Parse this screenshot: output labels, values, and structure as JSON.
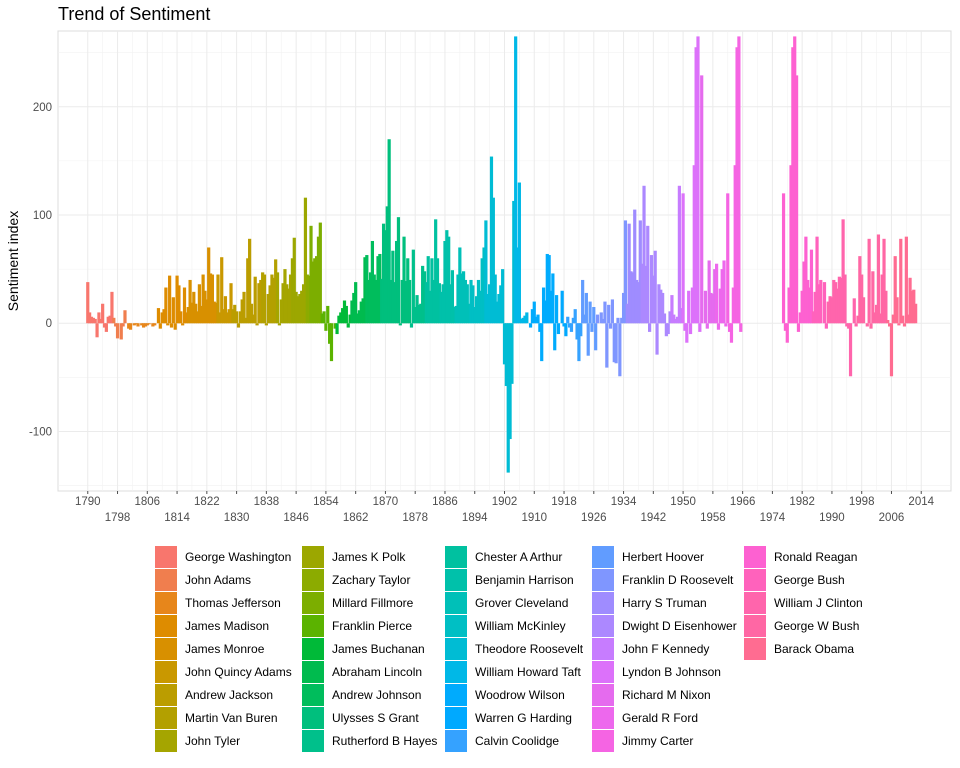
{
  "chart_data": {
    "type": "bar",
    "title": "Trend of Sentiment",
    "xlabel": "",
    "ylabel": "Sentiment index",
    "xlim": [
      1782,
      2022
    ],
    "ylim": [
      -155,
      270
    ],
    "y_ticks": [
      -100,
      0,
      100,
      200
    ],
    "x_ticks": [
      1790,
      1798,
      1806,
      1814,
      1822,
      1830,
      1838,
      1846,
      1854,
      1862,
      1870,
      1878,
      1886,
      1894,
      1902,
      1910,
      1918,
      1926,
      1934,
      1942,
      1950,
      1958,
      1966,
      1974,
      1982,
      1990,
      1998,
      2006,
      2014
    ],
    "grid": true,
    "legend_position": "bottom",
    "series": [
      {
        "name": "George Washington",
        "color": "#F8766D",
        "x": [
          1790,
          1790.5,
          1791,
          1791.5,
          1792,
          1792.5,
          1793,
          1793.5,
          1794,
          1794.5,
          1795,
          1795.5,
          1796,
          1796.5
        ],
        "values": [
          38,
          10,
          6,
          5,
          4,
          -13,
          10,
          4,
          18,
          -4,
          -8,
          6,
          7,
          29
        ]
      },
      {
        "name": "John Adams",
        "color": "#F07E4E",
        "x": [
          1797,
          1797.5,
          1798,
          1798.5,
          1799,
          1799.5,
          1800,
          1800.5
        ],
        "values": [
          5,
          -3,
          -14,
          0,
          -15,
          -3,
          12,
          0
        ]
      },
      {
        "name": "Thomas Jefferson",
        "color": "#E7861B",
        "x": [
          1801,
          1801.5,
          1802,
          1802.5,
          1803,
          1803.5,
          1804,
          1804.5,
          1805,
          1805.5,
          1806,
          1806.5,
          1807,
          1807.5,
          1808,
          1808.5
        ],
        "values": [
          -5,
          -6,
          0,
          -2,
          -1,
          -3,
          0,
          -2,
          -4,
          -3,
          -2,
          -1,
          0,
          -3,
          -2,
          0
        ]
      },
      {
        "name": "James Madison",
        "color": "#DE8C00",
        "x": [
          1809,
          1809.5,
          1810,
          1810.5,
          1811,
          1811.5,
          1812,
          1812.5,
          1813,
          1813.5,
          1814,
          1814.5,
          1815,
          1815.5,
          1816,
          1816.5
        ],
        "values": [
          14,
          -5,
          10,
          13,
          33,
          -2,
          44,
          -4,
          24,
          -6,
          44,
          35,
          11,
          -2,
          33,
          10
        ]
      },
      {
        "name": "James Monroe",
        "color": "#D89000",
        "x": [
          1817,
          1817.5,
          1818,
          1818.5,
          1819,
          1819.5,
          1820,
          1820.5,
          1821,
          1821.5,
          1822,
          1822.5,
          1823,
          1823.5,
          1824,
          1824.5
        ],
        "values": [
          15,
          40,
          19,
          29,
          18,
          11,
          36,
          16,
          45,
          30,
          22,
          70,
          46,
          45,
          20,
          19
        ]
      },
      {
        "name": "John Quincy Adams",
        "color": "#C99800",
        "x": [
          1825,
          1825.5,
          1826,
          1826.5,
          1827,
          1827.5,
          1828,
          1828.5
        ],
        "values": [
          45,
          10,
          61,
          13,
          25,
          10,
          13,
          37
        ]
      },
      {
        "name": "Andrew Jackson",
        "color": "#BB9D00",
        "x": [
          1829,
          1829.5,
          1830,
          1830.5,
          1831,
          1831.5,
          1832,
          1832.5,
          1833,
          1833.5,
          1834,
          1834.5,
          1835,
          1835.5,
          1836,
          1836.5
        ],
        "values": [
          13,
          17,
          11,
          -4,
          11,
          22,
          29,
          5,
          60,
          78,
          18,
          8,
          43,
          -2,
          37,
          40
        ]
      },
      {
        "name": "Martin Van Buren",
        "color": "#B3A000",
        "x": [
          1837,
          1837.5,
          1838,
          1838.5,
          1839,
          1839.5,
          1840,
          1840.5
        ],
        "values": [
          47,
          45,
          -2,
          27,
          35,
          45,
          42,
          59
        ]
      },
      {
        "name": "John Tyler",
        "color": "#A5A500",
        "x": [
          1841,
          1841.5,
          1842,
          1842.5,
          1843,
          1843.5,
          1844,
          1844.5
        ],
        "values": [
          47,
          -2,
          22,
          37,
          50,
          36,
          32,
          45
        ]
      },
      {
        "name": "James K Polk",
        "color": "#9CA700",
        "x": [
          1845,
          1845.5,
          1846,
          1846.5,
          1847,
          1847.5,
          1848,
          1848.5
        ],
        "values": [
          60,
          79,
          29,
          25,
          27,
          30,
          36,
          116
        ]
      },
      {
        "name": "Zachary Taylor",
        "color": "#8CAB00",
        "x": [
          1849,
          1849.5
        ],
        "values": [
          45,
          44
        ]
      },
      {
        "name": "Millard Fillmore",
        "color": "#7CAE00",
        "x": [
          1850,
          1850.5,
          1851,
          1851.5,
          1852,
          1852.5
        ],
        "values": [
          90,
          57,
          60,
          62,
          80,
          93
        ]
      },
      {
        "name": "Franklin Pierce",
        "color": "#5BB300",
        "x": [
          1853,
          1853.5,
          1854,
          1854.5,
          1855,
          1855.5,
          1856,
          1856.5
        ],
        "values": [
          9,
          11,
          -7,
          16,
          -19,
          -35,
          0,
          -5
        ]
      },
      {
        "name": "James Buchanan",
        "color": "#00BA38",
        "x": [
          1857,
          1857.5,
          1858,
          1858.5,
          1859,
          1859.5,
          1860,
          1860.5
        ],
        "values": [
          -10,
          7,
          10,
          14,
          21,
          16,
          -4,
          8
        ]
      },
      {
        "name": "Abraham Lincoln",
        "color": "#00BB4E",
        "x": [
          1861,
          1861.5,
          1862,
          1862.5,
          1863,
          1863.5,
          1864,
          1864.5
        ],
        "values": [
          21,
          28,
          38,
          9,
          12,
          20,
          23,
          61
        ]
      },
      {
        "name": "Andrew Johnson",
        "color": "#00BD5C",
        "x": [
          1865,
          1865.5,
          1866,
          1866.5,
          1867,
          1867.5,
          1868,
          1868.5
        ],
        "values": [
          63,
          40,
          47,
          76,
          45,
          40,
          62,
          64
        ]
      },
      {
        "name": "Ulysses S Grant",
        "color": "#00BF7D",
        "x": [
          1869,
          1869.5,
          1870,
          1870.5,
          1871,
          1871.5,
          1872,
          1872.5,
          1873,
          1873.5,
          1874,
          1874.5,
          1875,
          1875.5,
          1876,
          1876.5
        ],
        "values": [
          41,
          92,
          86,
          108,
          170,
          40,
          67,
          38,
          76,
          98,
          -2,
          40,
          80,
          39,
          60,
          40
        ]
      },
      {
        "name": "Rutherford B Hayes",
        "color": "#00C08B",
        "x": [
          1877,
          1877.5,
          1878,
          1878.5,
          1879,
          1879.5,
          1880,
          1880.5
        ],
        "values": [
          -4,
          68,
          15,
          26,
          17,
          18,
          53,
          48
        ]
      },
      {
        "name": "Chester A Arthur",
        "color": "#00C1A0",
        "x": [
          1881,
          1881.5,
          1882,
          1882.5,
          1883,
          1883.5,
          1884,
          1884.5
        ],
        "values": [
          38,
          62,
          30,
          60,
          40,
          96,
          60,
          37
        ]
      },
      {
        "name": "Benjamin Harrison",
        "color": "#00C1AA",
        "x": [
          1885,
          1885.5,
          1886,
          1886.5,
          1887,
          1887.5,
          1888,
          1888.5
        ],
        "values": [
          29,
          36,
          76,
          86,
          80,
          36,
          49,
          15
        ]
      },
      {
        "name": "Grover Cleveland",
        "color": "#00C0B8",
        "x": [
          1889,
          1889.5,
          1890,
          1890.5,
          1891,
          1891.5,
          1892,
          1892.5
        ],
        "values": [
          16,
          45,
          70,
          46,
          48,
          40,
          36,
          18
        ]
      },
      {
        "name": "William McKinley",
        "color": "#00BFC4",
        "x": [
          1893,
          1893.5,
          1894,
          1894.5,
          1895,
          1895.5,
          1896,
          1896.5
        ],
        "values": [
          40,
          35,
          15,
          25,
          40,
          30,
          60,
          70
        ]
      },
      {
        "name": "Theodore Roosevelt",
        "color": "#00BCD4",
        "x": [
          1897,
          1897.5,
          1898,
          1898.5,
          1899,
          1899.5,
          1900,
          1900.5,
          1901,
          1901.5,
          1902,
          1902.5,
          1903,
          1903.5,
          1904,
          1904.5
        ],
        "values": [
          95,
          27,
          36,
          154,
          116,
          45,
          20,
          27,
          35,
          50,
          -38,
          -58,
          -138,
          -107,
          -56,
          113
        ]
      },
      {
        "name": "William Howard Taft",
        "color": "#00B8E7",
        "x": [
          1905,
          1905.5,
          1906,
          1906.5,
          1907,
          1907.5,
          1908,
          1908.5
        ],
        "values": [
          265,
          70,
          130,
          4,
          5,
          7,
          10,
          0
        ]
      },
      {
        "name": "Woodrow Wilson",
        "color": "#00ABFD",
        "x": [
          1909,
          1909.5,
          1910,
          1910.5,
          1911,
          1911.5,
          1912,
          1912.5,
          1913,
          1913.5,
          1914,
          1914.5,
          1915,
          1915.5,
          1916,
          1916.5
        ],
        "values": [
          -4,
          13,
          20,
          6,
          8,
          -8,
          -35,
          33,
          21,
          64,
          63,
          30,
          46,
          -25,
          26,
          -10
        ]
      },
      {
        "name": "Warren G Harding",
        "color": "#00A9FF",
        "x": [
          1917,
          1917.5,
          1918,
          1918.5
        ],
        "values": [
          0,
          30,
          -3,
          -12
        ]
      },
      {
        "name": "Calvin Coolidge",
        "color": "#35A2FF",
        "x": [
          1919,
          1919.5,
          1920,
          1920.5,
          1921,
          1921.5,
          1922,
          1922.5
        ],
        "values": [
          6,
          -4,
          -8,
          5,
          13,
          -15,
          -35,
          -12
        ]
      },
      {
        "name": "Herbert Hoover",
        "color": "#619CFF",
        "x": [
          1923,
          1923.5,
          1924,
          1924.5,
          1925,
          1925.5,
          1926,
          1926.5
        ],
        "values": [
          40,
          8,
          28,
          -30,
          20,
          -8,
          15,
          -25
        ]
      },
      {
        "name": "Franklin D Roosevelt",
        "color": "#7F96FF",
        "x": [
          1927,
          1927.5,
          1928,
          1928.5,
          1929,
          1929.5,
          1930,
          1930.5,
          1931,
          1931.5,
          1932,
          1932.5,
          1933,
          1933.5,
          1934,
          1934.5
        ],
        "values": [
          8,
          0,
          10,
          4,
          20,
          -41,
          17,
          -5,
          22,
          -36,
          -37,
          5,
          -49,
          5,
          28,
          95
        ]
      },
      {
        "name": "Harry S Truman",
        "color": "#9F8CFF",
        "x": [
          1935,
          1935.5,
          1936,
          1936.5,
          1937,
          1937.5,
          1938,
          1938.5
        ],
        "values": [
          18,
          92,
          48,
          47,
          105,
          40,
          38,
          95
        ]
      },
      {
        "name": "Dwight D Eisenhower",
        "color": "#AC88FF",
        "x": [
          1939,
          1939.5,
          1940,
          1940.5,
          1941,
          1941.5,
          1942,
          1942.5,
          1943,
          1943.5,
          1944,
          1944.5,
          1945,
          1945.5,
          1946,
          1946.5
        ],
        "values": [
          55,
          127,
          53,
          90,
          -8,
          63,
          44,
          67,
          -29,
          36,
          31,
          28,
          9,
          -12,
          -10,
          11
        ]
      },
      {
        "name": "John F Kennedy",
        "color": "#C77CFF",
        "x": [
          1947,
          1947.5,
          1948,
          1948.5,
          1949,
          1949.5
        ],
        "values": [
          26,
          8,
          4,
          6,
          127,
          14
        ]
      },
      {
        "name": "Lyndon B Johnson",
        "color": "#DC71FA",
        "x": [
          1950,
          1950.5,
          1951,
          1951.5,
          1952,
          1952.5,
          1953,
          1953.5,
          1954,
          1954.5
        ],
        "values": [
          120,
          -7,
          -18,
          30,
          -10,
          33,
          146,
          255,
          265,
          -8
        ]
      },
      {
        "name": "Richard M Nixon",
        "color": "#E56BEE",
        "x": [
          1955,
          1955.5,
          1956,
          1956.5,
          1957,
          1957.5,
          1958,
          1958.5
        ],
        "values": [
          229,
          0,
          30,
          -5,
          58,
          28,
          27,
          50
        ]
      },
      {
        "name": "Gerald R Ford",
        "color": "#ED68ED",
        "x": [
          1959,
          1959.5,
          1960,
          1960.5,
          1961,
          1961.5
        ],
        "values": [
          55,
          -6,
          32,
          50,
          58,
          -3
        ]
      },
      {
        "name": "Jimmy Carter",
        "color": "#F564E3",
        "x": [
          1962,
          1962.5,
          1963,
          1963.5,
          1964,
          1964.5,
          1965,
          1965.5
        ],
        "values": [
          120,
          -8,
          -18,
          33,
          146,
          255,
          265,
          -8
        ]
      },
      {
        "name": "Ronald Reagan",
        "color": "#FD61D1",
        "x": [
          1977,
          1977.5,
          1978,
          1978.5,
          1979,
          1979.5,
          1980,
          1980.5,
          1981,
          1981.5,
          1982,
          1982.5,
          1983,
          1983.5,
          1984,
          1984.5
        ],
        "values": [
          120,
          -7,
          -18,
          33,
          146,
          255,
          265,
          229,
          -8,
          10,
          30,
          57,
          80,
          40,
          33,
          68
        ]
      },
      {
        "name": "George Bush",
        "color": "#FF62BC",
        "x": [
          1985,
          1985.5,
          1986,
          1986.5,
          1987,
          1987.5,
          1988,
          1988.5
        ],
        "values": [
          11,
          29,
          80,
          36,
          40,
          0,
          38,
          -5
        ]
      },
      {
        "name": "William J Clinton",
        "color": "#FF65AC",
        "x": [
          1989,
          1989.5,
          1990,
          1990.5,
          1991,
          1991.5,
          1992,
          1992.5,
          1993,
          1993.5,
          1994,
          1994.5,
          1995,
          1995.5,
          1996,
          1996.5
        ],
        "values": [
          20,
          25,
          24,
          40,
          38,
          32,
          43,
          42,
          96,
          45,
          -3,
          -5,
          -49,
          0,
          23,
          -3
        ]
      },
      {
        "name": "George W Bush",
        "color": "#FF67A4",
        "x": [
          1997,
          1997.5,
          1998,
          1998.5,
          1999,
          1999.5,
          2000,
          2000.5,
          2001,
          2001.5,
          2002,
          2002.5,
          2003,
          2003.5,
          2004,
          2004.5
        ],
        "values": [
          7,
          62,
          45,
          24,
          0,
          -3,
          78,
          -5,
          48,
          10,
          17,
          82,
          9,
          45,
          78,
          30
        ]
      },
      {
        "name": "Barack Obama",
        "color": "#FF6C91",
        "x": [
          2005,
          2005.5,
          2006,
          2006.5,
          2007,
          2007.5,
          2008,
          2008.5,
          2009,
          2009.5,
          2010,
          2010.5,
          2011,
          2011.5,
          2012,
          2012.5,
          2013,
          2013.5,
          2014,
          2014.5,
          2015,
          2015.5,
          2016,
          2016.5
        ],
        "values": [
          3,
          -3,
          -49,
          8,
          62,
          24,
          -2,
          78,
          7,
          -3,
          80,
          8,
          42,
          30,
          31,
          18,
          0,
          0,
          0,
          0,
          0,
          0,
          0,
          0
        ]
      }
    ]
  }
}
